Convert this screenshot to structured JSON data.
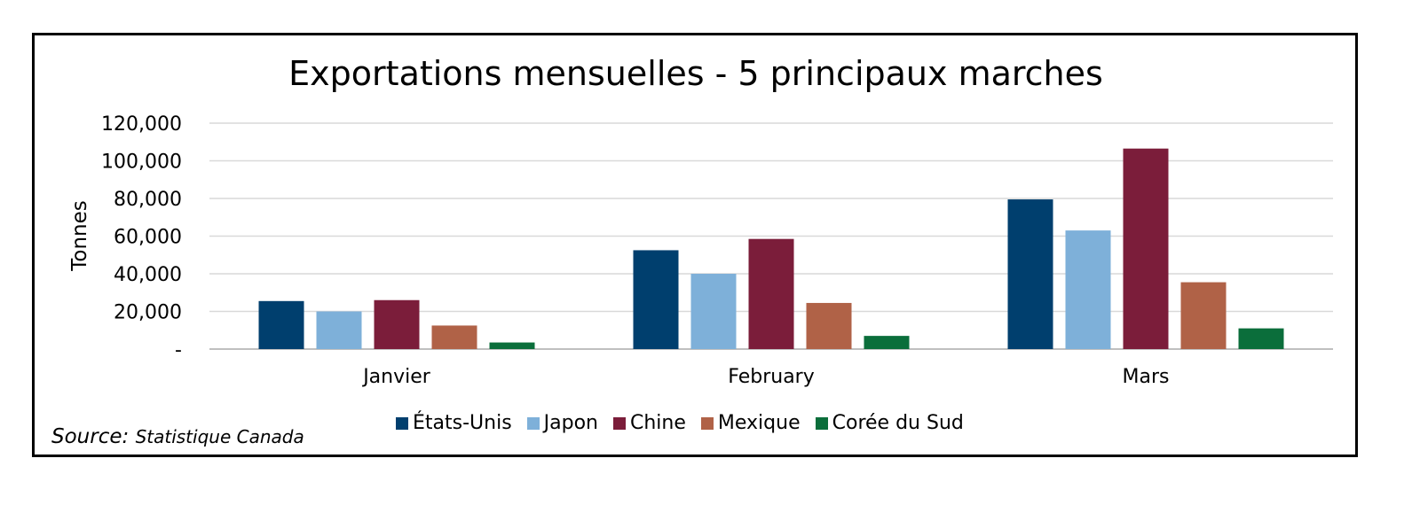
{
  "chart_data": {
    "type": "bar",
    "title": "Exportations mensuelles - 5 principaux marches",
    "ylabel": "Tonnes",
    "xlabel": "",
    "categories": [
      "Janvier",
      "February",
      "Mars"
    ],
    "ylim": [
      0,
      120000
    ],
    "yticks": [
      {
        "value": 0,
        "label": "-"
      },
      {
        "value": 20000,
        "label": "20,000"
      },
      {
        "value": 40000,
        "label": "40,000"
      },
      {
        "value": 60000,
        "label": "60,000"
      },
      {
        "value": 80000,
        "label": "80,000"
      },
      {
        "value": 100000,
        "label": "100,000"
      },
      {
        "value": 120000,
        "label": "120,000"
      }
    ],
    "grid": true,
    "legend_position": "bottom",
    "series": [
      {
        "name": "États-Unis",
        "color": "#003f6e",
        "values": [
          25500,
          52500,
          79500
        ]
      },
      {
        "name": "Japon",
        "color": "#7eb0d9",
        "values": [
          20000,
          40000,
          63000
        ]
      },
      {
        "name": "Chine",
        "color": "#7b1d3a",
        "values": [
          26000,
          58500,
          106500
        ]
      },
      {
        "name": "Mexique",
        "color": "#b06247",
        "values": [
          12500,
          24500,
          35500
        ]
      },
      {
        "name": "Corée du Sud",
        "color": "#0b6e3b",
        "values": [
          3500,
          7000,
          11000
        ]
      }
    ]
  },
  "source": {
    "prefix": "Source:",
    "name": "Statistique Canada"
  }
}
